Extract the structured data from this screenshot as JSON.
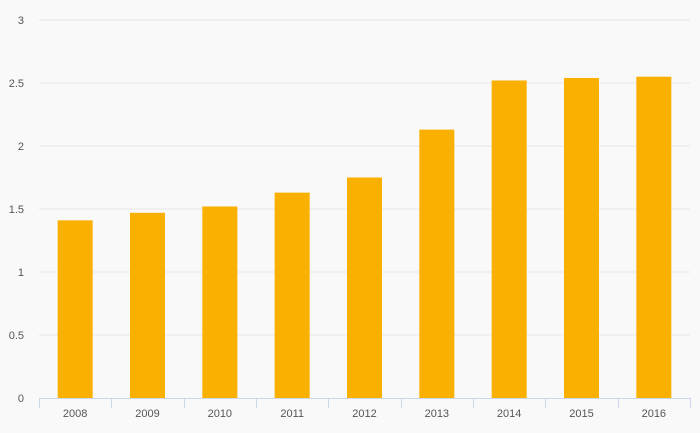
{
  "chart_data": {
    "type": "bar",
    "title": "",
    "xlabel": "",
    "ylabel": "",
    "categories": [
      "2008",
      "2009",
      "2010",
      "2011",
      "2012",
      "2013",
      "2014",
      "2015",
      "2016"
    ],
    "values": [
      1.41,
      1.47,
      1.52,
      1.63,
      1.75,
      2.13,
      2.52,
      2.54,
      2.55
    ],
    "ylim": [
      0,
      3
    ],
    "yticks": [
      "0",
      "0.5",
      "1",
      "1.5",
      "2",
      "2.5",
      "3"
    ],
    "grid": true,
    "legend": "none",
    "colors": {
      "bar": "#f9b000",
      "grid": "#e6e6e6",
      "axis": "#ccd6eb",
      "background": "#f9f9f9",
      "text": "#555555"
    }
  }
}
